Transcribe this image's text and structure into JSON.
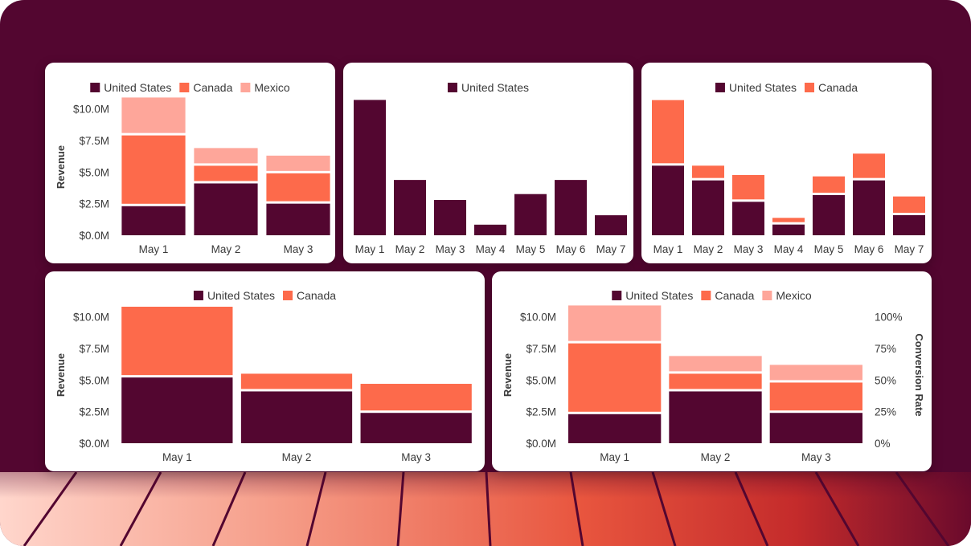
{
  "colors": {
    "united_states": "#530630",
    "canada": "#fd6a4b",
    "mexico": "#fea69a",
    "background": "#530630"
  },
  "chart_data": [
    {
      "type": "bar",
      "stacked": true,
      "categories": [
        "May 1",
        "May 2",
        "May 3"
      ],
      "series": [
        {
          "name": "United States",
          "values": [
            2.3,
            4.1,
            2.5
          ]
        },
        {
          "name": "Canada",
          "values": [
            5.6,
            1.4,
            2.4
          ]
        },
        {
          "name": "Mexico",
          "values": [
            3.0,
            1.4,
            1.4
          ]
        }
      ],
      "ylabel": "Revenue",
      "yticks": [
        "$0.0M",
        "$2.5M",
        "$5.0M",
        "$7.5M",
        "$10.0M"
      ],
      "ylim": [
        0,
        10.8
      ],
      "legend": "top"
    },
    {
      "type": "bar",
      "stacked": true,
      "categories": [
        "May 1",
        "May 2",
        "May 3",
        "May 4",
        "May 5",
        "May 6",
        "May 7"
      ],
      "series": [
        {
          "name": "United States",
          "values": [
            11.5,
            4.7,
            3.0,
            0.9,
            3.5,
            4.7,
            1.7
          ]
        }
      ],
      "ylim": [
        0,
        11.6
      ],
      "legend": "top"
    },
    {
      "type": "bar",
      "stacked": true,
      "categories": [
        "May 1",
        "May 2",
        "May 3",
        "May 4",
        "May 5",
        "May 6",
        "May 7"
      ],
      "series": [
        {
          "name": "United States",
          "values": [
            5.2,
            4.1,
            2.5,
            0.8,
            3.0,
            4.1,
            1.5
          ]
        },
        {
          "name": "Canada",
          "values": [
            4.9,
            1.1,
            2.0,
            0.5,
            1.4,
            2.0,
            1.4
          ]
        }
      ],
      "ylim": [
        0,
        10.2
      ],
      "legend": "top"
    },
    {
      "type": "bar",
      "stacked": true,
      "categories": [
        "May 1",
        "May 2",
        "May 3"
      ],
      "series": [
        {
          "name": "United States",
          "values": [
            5.2,
            4.1,
            2.4
          ]
        },
        {
          "name": "Canada",
          "values": [
            5.6,
            1.4,
            2.3
          ]
        }
      ],
      "ylabel": "Revenue",
      "yticks": [
        "$0.0M",
        "$2.5M",
        "$5.0M",
        "$7.5M",
        "$10.0M"
      ],
      "ylim": [
        0,
        10.8
      ],
      "legend": "top"
    },
    {
      "type": "bar",
      "stacked": true,
      "categories": [
        "May 1",
        "May 2",
        "May 3"
      ],
      "series": [
        {
          "name": "United States",
          "values": [
            2.3,
            4.1,
            2.4
          ]
        },
        {
          "name": "Canada",
          "values": [
            5.6,
            1.4,
            2.4
          ]
        },
        {
          "name": "Mexico",
          "values": [
            3.0,
            1.4,
            1.4
          ]
        }
      ],
      "ylabel": "Revenue",
      "yticks": [
        "$0.0M",
        "$2.5M",
        "$5.0M",
        "$7.5M",
        "$10.0M"
      ],
      "ylim": [
        0,
        10.8
      ],
      "y2label": "Conversion Rate",
      "y2ticks": [
        "0%",
        "25%",
        "50%",
        "75%",
        "100%"
      ],
      "legend": "top"
    }
  ]
}
